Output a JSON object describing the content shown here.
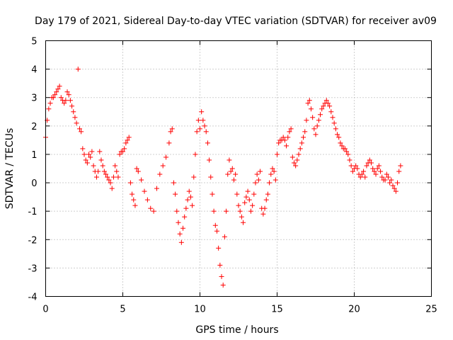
{
  "chart_data": {
    "type": "scatter",
    "title": "Day 179 of 2021, Sidereal Day-to-day VTEC variation (SDTVAR) for receiver av09",
    "xlabel": "GPS time / hours",
    "ylabel": "SDTVAR / TECUs",
    "xlim": [
      0,
      25
    ],
    "ylim": [
      -4,
      5
    ],
    "xticks": [
      0,
      5,
      10,
      15,
      20,
      25
    ],
    "yticks": [
      -4,
      -3,
      -2,
      -1,
      0,
      1,
      2,
      3,
      4,
      5
    ],
    "grid": true,
    "marker": "+",
    "color": "#ff0000",
    "series": [
      {
        "name": "SDTVAR",
        "x": [
          0.0,
          0.1,
          0.2,
          0.3,
          0.4,
          0.5,
          0.6,
          0.7,
          0.8,
          0.9,
          1.0,
          1.1,
          1.2,
          1.3,
          1.4,
          1.5,
          1.6,
          1.7,
          1.8,
          1.9,
          2.0,
          2.1,
          2.2,
          2.3,
          2.4,
          2.5,
          2.6,
          2.7,
          2.8,
          2.9,
          3.0,
          3.1,
          3.2,
          3.3,
          3.4,
          3.5,
          3.6,
          3.7,
          3.8,
          3.9,
          4.0,
          4.1,
          4.2,
          4.3,
          4.4,
          4.5,
          4.6,
          4.7,
          4.8,
          4.9,
          5.0,
          5.1,
          5.2,
          5.3,
          5.4,
          5.5,
          5.6,
          5.7,
          5.8,
          5.9,
          6.0,
          6.2,
          6.4,
          6.6,
          6.8,
          7.0,
          7.2,
          7.4,
          7.6,
          7.8,
          8.0,
          8.1,
          8.2,
          8.3,
          8.4,
          8.5,
          8.6,
          8.7,
          8.8,
          8.9,
          9.0,
          9.1,
          9.2,
          9.3,
          9.4,
          9.5,
          9.6,
          9.7,
          9.8,
          9.9,
          10.0,
          10.1,
          10.2,
          10.3,
          10.4,
          10.5,
          10.6,
          10.7,
          10.8,
          10.9,
          11.0,
          11.1,
          11.2,
          11.3,
          11.4,
          11.5,
          11.6,
          11.7,
          11.8,
          11.9,
          12.0,
          12.1,
          12.2,
          12.3,
          12.4,
          12.5,
          12.6,
          12.7,
          12.8,
          12.9,
          13.0,
          13.1,
          13.2,
          13.3,
          13.4,
          13.5,
          13.6,
          13.7,
          13.8,
          13.9,
          14.0,
          14.1,
          14.2,
          14.3,
          14.4,
          14.5,
          14.6,
          14.7,
          14.8,
          14.9,
          15.0,
          15.1,
          15.2,
          15.3,
          15.4,
          15.5,
          15.6,
          15.7,
          15.8,
          15.9,
          16.0,
          16.1,
          16.2,
          16.3,
          16.4,
          16.5,
          16.6,
          16.7,
          16.8,
          16.9,
          17.0,
          17.1,
          17.2,
          17.3,
          17.4,
          17.5,
          17.6,
          17.7,
          17.8,
          17.9,
          18.0,
          18.1,
          18.2,
          18.3,
          18.4,
          18.5,
          18.6,
          18.7,
          18.8,
          18.9,
          19.0,
          19.1,
          19.2,
          19.3,
          19.4,
          19.5,
          19.6,
          19.7,
          19.8,
          19.9,
          20.0,
          20.1,
          20.2,
          20.3,
          20.4,
          20.5,
          20.6,
          20.7,
          20.8,
          20.9,
          21.0,
          21.1,
          21.2,
          21.3,
          21.4,
          21.5,
          21.6,
          21.7,
          21.8,
          21.9,
          22.0,
          22.1,
          22.2,
          22.3,
          22.4,
          22.5,
          22.6,
          22.7,
          22.8,
          22.9,
          23.0
        ],
        "y": [
          1.6,
          2.2,
          2.6,
          2.8,
          3.0,
          3.0,
          3.1,
          3.2,
          3.3,
          3.4,
          3.0,
          2.9,
          2.8,
          2.9,
          3.2,
          3.1,
          2.9,
          2.7,
          2.5,
          2.3,
          2.1,
          4.0,
          1.9,
          1.8,
          1.2,
          1.0,
          0.8,
          0.7,
          1.0,
          0.9,
          1.1,
          0.6,
          0.4,
          0.2,
          0.4,
          1.1,
          0.8,
          0.6,
          0.4,
          0.3,
          0.2,
          0.1,
          0.0,
          -0.2,
          0.2,
          0.6,
          0.4,
          0.2,
          1.0,
          1.1,
          1.1,
          1.2,
          1.4,
          1.5,
          1.6,
          0.0,
          -0.4,
          -0.6,
          -0.8,
          0.5,
          0.4,
          0.1,
          -0.3,
          -0.6,
          -0.9,
          -1.0,
          -0.2,
          0.3,
          0.6,
          0.9,
          1.4,
          1.8,
          1.9,
          0.0,
          -0.4,
          -1.0,
          -1.4,
          -1.8,
          -2.1,
          -1.6,
          -1.2,
          -0.9,
          -0.6,
          -0.3,
          -0.5,
          -0.8,
          0.2,
          1.0,
          1.8,
          2.2,
          1.9,
          2.5,
          2.2,
          2.0,
          1.8,
          1.4,
          0.8,
          0.2,
          -0.4,
          -1.0,
          -1.5,
          -1.7,
          -2.3,
          -2.9,
          -3.3,
          -3.6,
          -1.9,
          -1.0,
          0.3,
          0.8,
          0.4,
          0.5,
          0.1,
          0.3,
          -0.4,
          -0.8,
          -1.0,
          -1.2,
          -1.4,
          -0.7,
          -0.5,
          -0.3,
          -0.6,
          -1.0,
          -0.8,
          -0.4,
          0.0,
          0.3,
          0.1,
          0.4,
          -0.9,
          -1.1,
          -0.9,
          -0.6,
          -0.4,
          0.0,
          0.3,
          0.5,
          0.4,
          0.1,
          1.0,
          1.4,
          1.5,
          1.5,
          1.6,
          1.5,
          1.3,
          1.6,
          1.8,
          1.9,
          0.9,
          0.7,
          0.6,
          0.8,
          1.0,
          1.2,
          1.4,
          1.6,
          1.8,
          2.2,
          2.8,
          2.9,
          2.6,
          2.3,
          1.9,
          1.7,
          2.0,
          2.2,
          2.4,
          2.6,
          2.7,
          2.8,
          2.9,
          2.8,
          2.7,
          2.5,
          2.3,
          2.1,
          1.9,
          1.7,
          1.6,
          1.4,
          1.3,
          1.2,
          1.2,
          1.1,
          1.0,
          0.8,
          0.6,
          0.4,
          0.5,
          0.6,
          0.5,
          0.3,
          0.2,
          0.3,
          0.4,
          0.2,
          0.6,
          0.7,
          0.8,
          0.7,
          0.5,
          0.4,
          0.3,
          0.5,
          0.6,
          0.4,
          0.2,
          0.1,
          0.1,
          0.3,
          0.2,
          0.0,
          0.1,
          -0.1,
          -0.2,
          -0.3,
          0.0,
          0.4,
          0.6
        ]
      }
    ]
  }
}
